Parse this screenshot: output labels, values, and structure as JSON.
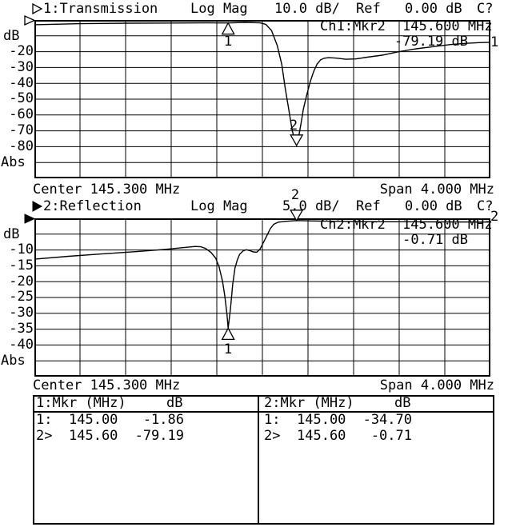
{
  "ch1": {
    "title": "1:Transmission",
    "format": "Log Mag",
    "scale": "10.0 dB/",
    "ref_label": "Ref",
    "ref_value": "0.00 dB",
    "status": "C?",
    "unit_label": "dB",
    "y_labels": [
      "-20",
      "-30",
      "-40",
      "-50",
      "-60",
      "-70",
      "-80"
    ],
    "scale_mode": "Abs",
    "readout_source": "Ch1:Mkr2",
    "readout_freq": "145.600 MHz",
    "readout_value": "-79.19 dB",
    "trace_number": "1",
    "marker1_label": "1",
    "marker2_label": "2",
    "center": "Center 145.300 MHz",
    "span": "Span 4.000 MHz"
  },
  "ch2": {
    "title": "2:Reflection",
    "format": "Log Mag",
    "scale": "5.0 dB/",
    "ref_label": "Ref",
    "ref_value": "0.00 dB",
    "status": "C?",
    "unit_label": "dB",
    "y_labels": [
      "-10",
      "-15",
      "-20",
      "-25",
      "-30",
      "-35",
      "-40"
    ],
    "scale_mode": "Abs",
    "readout_source": "Ch2:Mkr2",
    "readout_freq": "145.600 MHz",
    "readout_value": "-0.71 dB",
    "trace_number": "2",
    "marker1_label": "1",
    "marker2_label": "2",
    "center": "Center 145.300 MHz",
    "span": "Span 4.000 MHz"
  },
  "marker_table": {
    "ch1": {
      "header": "1:Mkr (MHz)",
      "unit": "dB",
      "rows": [
        {
          "id": "1:",
          "freq": "145.00",
          "value": "-1.86"
        },
        {
          "id": "2>",
          "freq": "145.60",
          "value": "-79.19"
        }
      ]
    },
    "ch2": {
      "header": "2:Mkr (MHz)",
      "unit": "dB",
      "rows": [
        {
          "id": "1:",
          "freq": "145.00",
          "value": "-34.70"
        },
        {
          "id": "2>",
          "freq": "145.60",
          "value": "-0.71"
        }
      ]
    }
  },
  "chart_data": [
    {
      "type": "line",
      "title": "1:Transmission",
      "format": "Log Mag",
      "scale_per_div_dB": 10.0,
      "ref_dB": 0.0,
      "center_MHz": 145.3,
      "span_MHz": 4.0,
      "x_range_MHz": [
        143.3,
        147.3
      ],
      "ylim_dB": [
        -100,
        0
      ],
      "ylabel": "dB",
      "scale_mode": "Abs",
      "grid": true,
      "markers": [
        {
          "n": 1,
          "MHz": 145.0,
          "dB": -1.86,
          "active": false
        },
        {
          "n": 2,
          "MHz": 145.6,
          "dB": -79.19,
          "active": true
        }
      ],
      "series": [
        {
          "name": "Transmission",
          "points": [
            [
              143.3,
              -3.0
            ],
            [
              143.7,
              -2.3
            ],
            [
              144.1,
              -2.0
            ],
            [
              144.5,
              -1.9
            ],
            [
              144.8,
              -1.8
            ],
            [
              145.0,
              -1.86
            ],
            [
              145.15,
              -1.5
            ],
            [
              145.28,
              -1.8
            ],
            [
              145.33,
              -2.8
            ],
            [
              145.38,
              -6.6
            ],
            [
              145.43,
              -16.0
            ],
            [
              145.47,
              -28.0
            ],
            [
              145.5,
              -43.0
            ],
            [
              145.53,
              -56.0
            ],
            [
              145.56,
              -69.0
            ],
            [
              145.58,
              -75.5
            ],
            [
              145.6,
              -79.19
            ],
            [
              145.62,
              -73.0
            ],
            [
              145.64,
              -65.0
            ],
            [
              145.66,
              -56.0
            ],
            [
              145.69,
              -47.0
            ],
            [
              145.72,
              -39.0
            ],
            [
              145.75,
              -32.5
            ],
            [
              145.78,
              -27.8
            ],
            [
              145.81,
              -25.2
            ],
            [
              145.84,
              -24.2
            ],
            [
              145.88,
              -23.8
            ],
            [
              145.95,
              -24.1
            ],
            [
              146.03,
              -24.8
            ],
            [
              146.12,
              -24.6
            ],
            [
              146.22,
              -23.5
            ],
            [
              146.35,
              -22.2
            ],
            [
              146.5,
              -20.0
            ],
            [
              146.65,
              -18.2
            ],
            [
              146.8,
              -16.8
            ],
            [
              146.95,
              -15.5
            ],
            [
              147.1,
              -14.7
            ],
            [
              147.2,
              -14.3
            ],
            [
              147.3,
              -14.1
            ]
          ]
        }
      ]
    },
    {
      "type": "line",
      "title": "2:Reflection",
      "format": "Log Mag",
      "scale_per_div_dB": 5.0,
      "ref_dB": 0.0,
      "center_MHz": 145.3,
      "span_MHz": 4.0,
      "x_range_MHz": [
        143.3,
        147.3
      ],
      "ylim_dB": [
        -50,
        0
      ],
      "ylabel": "dB",
      "scale_mode": "Abs",
      "grid": true,
      "markers": [
        {
          "n": 1,
          "MHz": 145.0,
          "dB": -34.7,
          "active": false
        },
        {
          "n": 2,
          "MHz": 145.6,
          "dB": -0.71,
          "active": true
        }
      ],
      "series": [
        {
          "name": "Reflection",
          "points": [
            [
              143.3,
              -12.9
            ],
            [
              143.6,
              -12.0
            ],
            [
              143.9,
              -11.2
            ],
            [
              144.2,
              -10.5
            ],
            [
              144.45,
              -9.8
            ],
            [
              144.62,
              -9.2
            ],
            [
              144.71,
              -8.9
            ],
            [
              144.76,
              -9.0
            ],
            [
              144.8,
              -9.5
            ],
            [
              144.85,
              -10.8
            ],
            [
              144.89,
              -12.6
            ],
            [
              144.92,
              -15.3
            ],
            [
              144.95,
              -19.8
            ],
            [
              144.97,
              -24.5
            ],
            [
              144.99,
              -30.5
            ],
            [
              145.0,
              -34.7
            ],
            [
              145.02,
              -28.5
            ],
            [
              145.04,
              -20.8
            ],
            [
              145.06,
              -15.6
            ],
            [
              145.08,
              -13.1
            ],
            [
              145.1,
              -11.4
            ],
            [
              145.13,
              -10.3
            ],
            [
              145.16,
              -9.9
            ],
            [
              145.19,
              -10.2
            ],
            [
              145.22,
              -10.6
            ],
            [
              145.25,
              -10.7
            ],
            [
              145.28,
              -9.7
            ],
            [
              145.31,
              -7.6
            ],
            [
              145.34,
              -5.4
            ],
            [
              145.37,
              -3.2
            ],
            [
              145.4,
              -1.9
            ],
            [
              145.44,
              -1.2
            ],
            [
              145.5,
              -0.95
            ],
            [
              145.6,
              -0.71
            ],
            [
              145.8,
              -0.85
            ],
            [
              146.1,
              -0.98
            ],
            [
              146.5,
              -1.08
            ],
            [
              146.9,
              -1.14
            ],
            [
              147.3,
              -1.18
            ]
          ]
        }
      ]
    }
  ]
}
